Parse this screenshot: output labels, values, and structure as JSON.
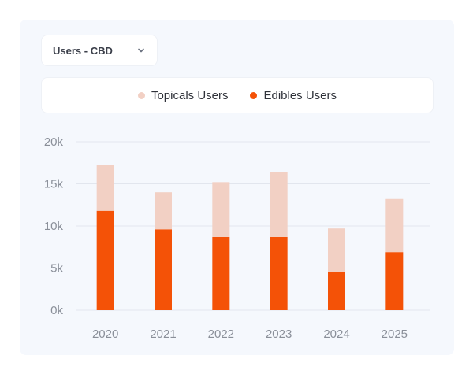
{
  "filter": {
    "selected": "Users - CBD"
  },
  "colors": {
    "topicals": "#f2d0c4",
    "edibles": "#f45207",
    "grid": "#e2e6ee",
    "tick": "#8a8f99"
  },
  "chart_data": {
    "type": "bar",
    "stacked": true,
    "categories": [
      "2020",
      "2021",
      "2022",
      "2023",
      "2024",
      "2025"
    ],
    "series": [
      {
        "name": "Topicals Users",
        "values": [
          5400,
          4400,
          6500,
          7700,
          5200,
          6300
        ]
      },
      {
        "name": "Edibles Users",
        "values": [
          11800,
          9600,
          8700,
          8700,
          4500,
          6900
        ]
      }
    ],
    "ylim": [
      0,
      20000
    ],
    "yticks": [
      "0k",
      "5k",
      "10k",
      "15k",
      "20k"
    ],
    "ytick_values": [
      0,
      5000,
      10000,
      15000,
      20000
    ],
    "grid": true,
    "legend": "top-center"
  }
}
